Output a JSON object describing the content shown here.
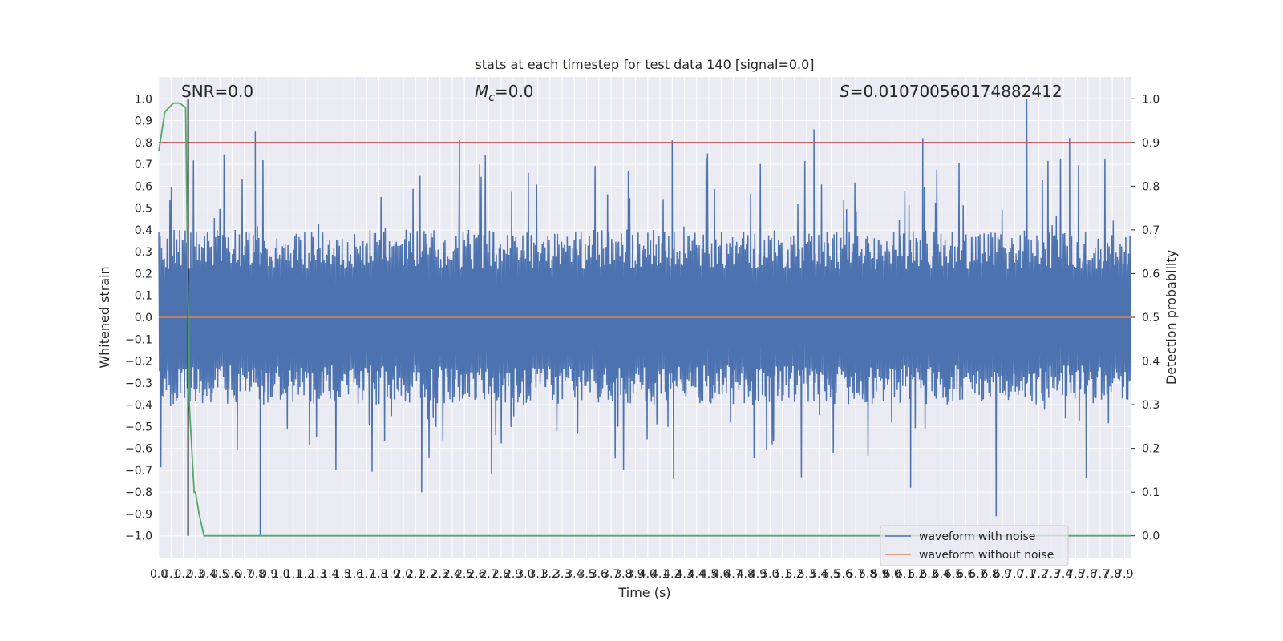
{
  "chart_data": {
    "type": "line",
    "title": "stats at each timestep for test data 140 [signal=0.0]",
    "xlabel": "Time (s)",
    "ylabel_left": "Whitened strain",
    "ylabel_right": "Detection probability",
    "xlim": [
      0.0,
      7.95
    ],
    "ylim_left": [
      -1.1,
      1.1
    ],
    "ylim_right": [
      -0.05,
      1.05
    ],
    "x_ticks": [
      "0.0",
      "0.1",
      "0.2",
      "0.3",
      "0.4",
      "0.5",
      "0.6",
      "0.7",
      "0.8",
      "0.9",
      "1.0",
      "1.1",
      "1.2",
      "1.3",
      "1.4",
      "1.5",
      "1.6",
      "1.7",
      "1.8",
      "1.9",
      "2.0",
      "2.1",
      "2.2",
      "2.3",
      "2.4",
      "2.5",
      "2.6",
      "2.7",
      "2.8",
      "2.9",
      "3.0",
      "3.1",
      "3.2",
      "3.3",
      "3.4",
      "3.5",
      "3.6",
      "3.7",
      "3.8",
      "3.9",
      "4.0",
      "4.1",
      "4.2",
      "4.3",
      "4.4",
      "4.5",
      "4.6",
      "4.7",
      "4.8",
      "4.9",
      "5.0",
      "5.1",
      "5.2",
      "5.3",
      "5.4",
      "5.5",
      "5.6",
      "5.7",
      "5.8",
      "5.9",
      "6.0",
      "6.1",
      "6.2",
      "6.3",
      "6.4",
      "6.5",
      "6.6",
      "6.7",
      "6.8",
      "6.9",
      "7.0",
      "7.1",
      "7.2",
      "7.3",
      "7.4",
      "7.5",
      "7.6",
      "7.7",
      "7.8",
      "7.9"
    ],
    "y_ticks_left": [
      "−1.0",
      "−0.9",
      "−0.8",
      "−0.7",
      "−0.6",
      "−0.5",
      "−0.4",
      "−0.3",
      "−0.2",
      "−0.1",
      "0.0",
      "0.1",
      "0.2",
      "0.3",
      "0.4",
      "0.5",
      "0.6",
      "0.7",
      "0.8",
      "0.9",
      "1.0"
    ],
    "y_ticks_right": [
      "0.0",
      "0.1",
      "0.2",
      "0.3",
      "0.4",
      "0.5",
      "0.6",
      "0.7",
      "0.8",
      "0.9",
      "1.0"
    ],
    "annotations": {
      "snr": "SNR=0.0",
      "mc": "=0.0",
      "mc_symbol": "M",
      "mc_sub": "c",
      "s_value": "=0.010700560174882412",
      "s_symbol": "S"
    },
    "threshold": {
      "axis": "right",
      "y": 0.9,
      "color": "#c44e52"
    },
    "vertical_marker": {
      "x": 0.24,
      "color": "#000000"
    },
    "series": [
      {
        "name": "waveform with noise",
        "axis": "left",
        "color": "#4c72b0",
        "kind": "noise",
        "envelope_typical": 0.4,
        "peak_max": 1.0,
        "trough_min": -1.0,
        "peaks": [
          [
            0.79,
            0.85
          ],
          [
            2.46,
            0.81
          ],
          [
            4.2,
            0.81
          ],
          [
            5.36,
            0.86
          ],
          [
            6.25,
            0.82
          ],
          [
            7.1,
            1.0
          ],
          [
            7.45,
            0.82
          ]
        ],
        "troughs": [
          [
            0.83,
            -1.0
          ],
          [
            6.85,
            -0.91
          ],
          [
            6.15,
            -0.78
          ],
          [
            2.15,
            -0.8
          ]
        ]
      },
      {
        "name": "waveform without noise",
        "axis": "left",
        "color": "#dd8452",
        "x": [
          0.0,
          7.95
        ],
        "y": [
          0.0,
          0.0
        ]
      },
      {
        "name": "",
        "axis": "right",
        "color": "#55a868",
        "x": [
          0.0,
          0.05,
          0.12,
          0.17,
          0.22,
          0.25,
          0.29,
          0.3,
          0.33,
          0.37,
          0.45,
          7.95
        ],
        "y": [
          0.88,
          0.97,
          0.99,
          0.99,
          0.98,
          0.3,
          0.1,
          0.1,
          0.05,
          0.0,
          0.0,
          0.0
        ]
      }
    ],
    "legend": {
      "placement": "lower-right",
      "entries": [
        "waveform with noise",
        "waveform without noise"
      ]
    },
    "grid": true
  }
}
